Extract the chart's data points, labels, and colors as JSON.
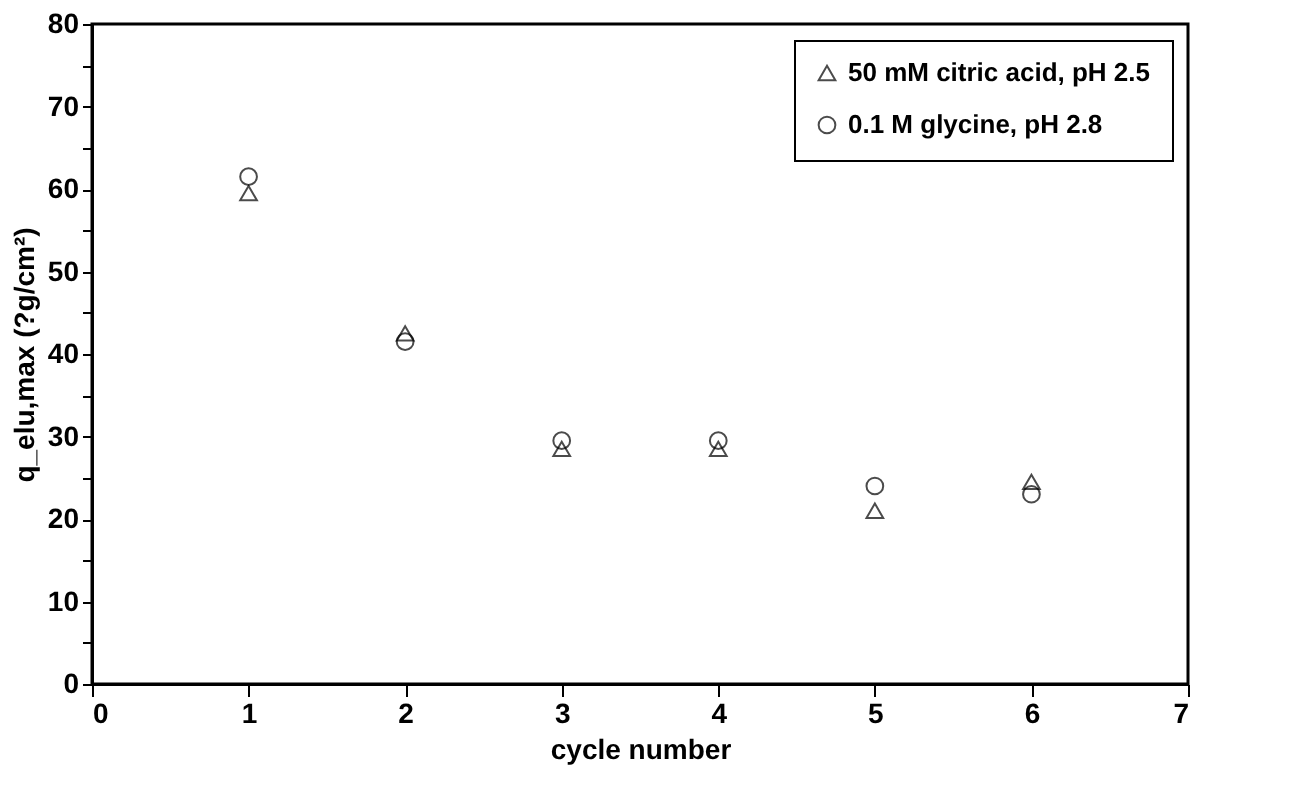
{
  "chart_data": {
    "type": "scatter",
    "xlabel": "cycle number",
    "ylabel": "q_elu,max (?g/cm²)",
    "x": [
      1,
      2,
      3,
      4,
      5,
      6
    ],
    "series": [
      {
        "name": "50 mM citric acid, pH 2.5",
        "color": "#000000",
        "marker": "triangle",
        "values": [
          59.5,
          42.5,
          28.5,
          28.5,
          21,
          24.5
        ]
      },
      {
        "name": "0.1 M glycine, pH 2.8",
        "color": "#000000",
        "marker": "circle",
        "values": [
          61.5,
          41.5,
          29.5,
          29.5,
          24,
          23
        ]
      }
    ],
    "xlim": [
      0,
      7
    ],
    "xticks": [
      0,
      1,
      2,
      3,
      4,
      5,
      6,
      7
    ],
    "ylim": [
      0,
      80
    ],
    "yticks": [
      0,
      {
        "value": 5,
        "label": null
      },
      10,
      {
        "value": 15,
        "label": null
      },
      20,
      {
        "value": 25,
        "label": null
      },
      30,
      {
        "value": 35,
        "label": null
      },
      40,
      {
        "value": 45,
        "label": null
      },
      50,
      {
        "value": 55,
        "label": null
      },
      60,
      {
        "value": 65,
        "label": null
      },
      70,
      {
        "value": 75,
        "label": null
      },
      80
    ],
    "grid": false,
    "legend": "top right"
  }
}
